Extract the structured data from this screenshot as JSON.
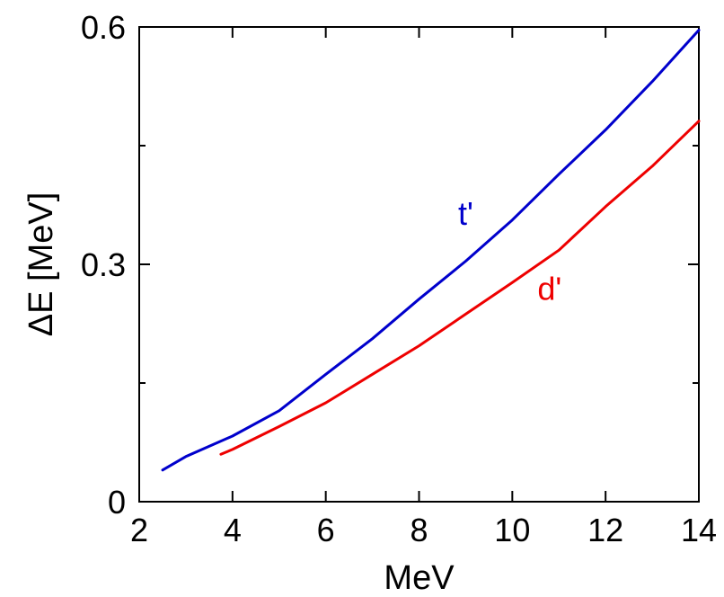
{
  "chart_data": {
    "type": "line",
    "title": "",
    "xlabel": "MeV",
    "ylabel": "ΔE [MeV]",
    "xlim": [
      2,
      14
    ],
    "ylim": [
      0,
      0.6
    ],
    "grid": false,
    "legend": "none",
    "x_ticks": [
      2,
      4,
      6,
      8,
      10,
      12,
      14
    ],
    "x_tick_labels": [
      "2",
      "4",
      "6",
      "8",
      "10",
      "12",
      "14"
    ],
    "y_ticks": [
      0,
      0.3,
      0.6
    ],
    "y_tick_labels": [
      "0",
      "0.3",
      "0.6"
    ],
    "y_minor_ticks": [
      0.15,
      0.45
    ],
    "series": [
      {
        "label": "t'",
        "color": "#0000cc",
        "label_at": [
          9.0,
          0.35
        ],
        "x": [
          2.5,
          3,
          4,
          5,
          6,
          7,
          8,
          9,
          10,
          11,
          12,
          13,
          14
        ],
        "y": [
          0.04,
          0.057,
          0.083,
          0.115,
          0.161,
          0.206,
          0.256,
          0.304,
          0.356,
          0.414,
          0.47,
          0.531,
          0.596
        ]
      },
      {
        "label": "d'",
        "color": "#ee0000",
        "label_at": [
          10.8,
          0.255
        ],
        "x": [
          3.75,
          4,
          5,
          6,
          7,
          8,
          9,
          10,
          11,
          12,
          13,
          14
        ],
        "y": [
          0.06,
          0.066,
          0.095,
          0.125,
          0.161,
          0.197,
          0.237,
          0.277,
          0.318,
          0.373,
          0.424,
          0.481
        ]
      }
    ]
  }
}
